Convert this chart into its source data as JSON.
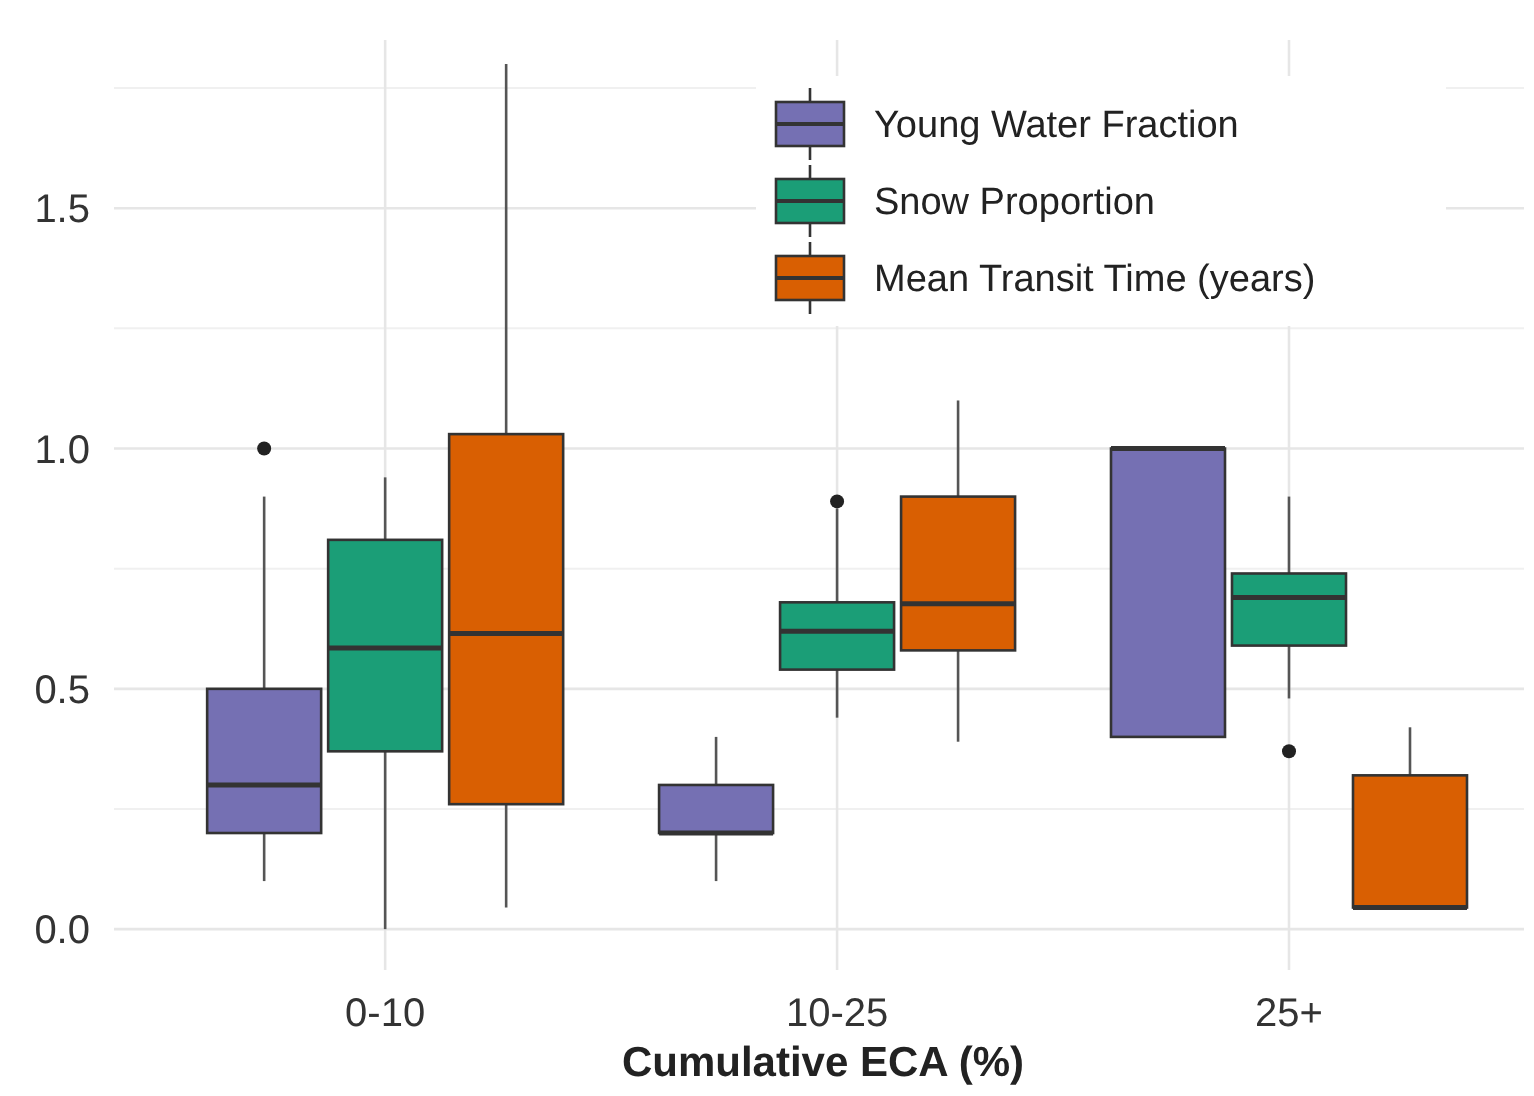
{
  "chart_data": {
    "type": "box",
    "xlabel": "Cumulative ECA (%)",
    "categories": [
      "0-10",
      "10-25",
      "25+"
    ],
    "ylim": [
      -0.085,
      1.85
    ],
    "yticks": [
      {
        "value": 0,
        "label": "0.0"
      },
      {
        "value": 0.5,
        "label": "0.5"
      },
      {
        "value": 1,
        "label": "1.0"
      },
      {
        "value": 1.5,
        "label": "1.5"
      }
    ],
    "grid": true,
    "legend": "top right",
    "series": [
      {
        "name": "Young Water Fraction",
        "color": "#7570b3",
        "boxes": [
          {
            "low": 0.1,
            "q1": 0.2,
            "median": 0.3,
            "q3": 0.5,
            "high": 0.9,
            "outliers": [
              1.0
            ]
          },
          {
            "low": 0.1,
            "q1": 0.2,
            "median": 0.2,
            "q3": 0.3,
            "high": 0.4
          },
          {
            "low": 0.4,
            "q1": 0.4,
            "median": 1.0,
            "q3": 1.0,
            "high": 1.0
          }
        ]
      },
      {
        "name": "Snow Proportion",
        "color": "#1b9e77",
        "boxes": [
          {
            "low": 0.0,
            "q1": 0.37,
            "median": 0.585,
            "q3": 0.81,
            "high": 0.94
          },
          {
            "low": 0.44,
            "q1": 0.54,
            "median": 0.62,
            "q3": 0.68,
            "high": 0.875,
            "outliers": [
              0.89
            ]
          },
          {
            "low": 0.48,
            "q1": 0.59,
            "median": 0.69,
            "q3": 0.74,
            "high": 0.9,
            "outliers": [
              0.37
            ]
          }
        ]
      },
      {
        "name": "Mean Transit Time (years)",
        "color": "#d95f02",
        "boxes": [
          {
            "low": 0.045,
            "q1": 0.26,
            "median": 0.615,
            "q3": 1.03,
            "high": 1.8
          },
          {
            "low": 0.39,
            "q1": 0.58,
            "median": 0.677,
            "q3": 0.9,
            "high": 1.1
          },
          {
            "low": 0.045,
            "q1": 0.045,
            "median": 0.045,
            "q3": 0.32,
            "high": 0.42
          }
        ]
      }
    ]
  }
}
